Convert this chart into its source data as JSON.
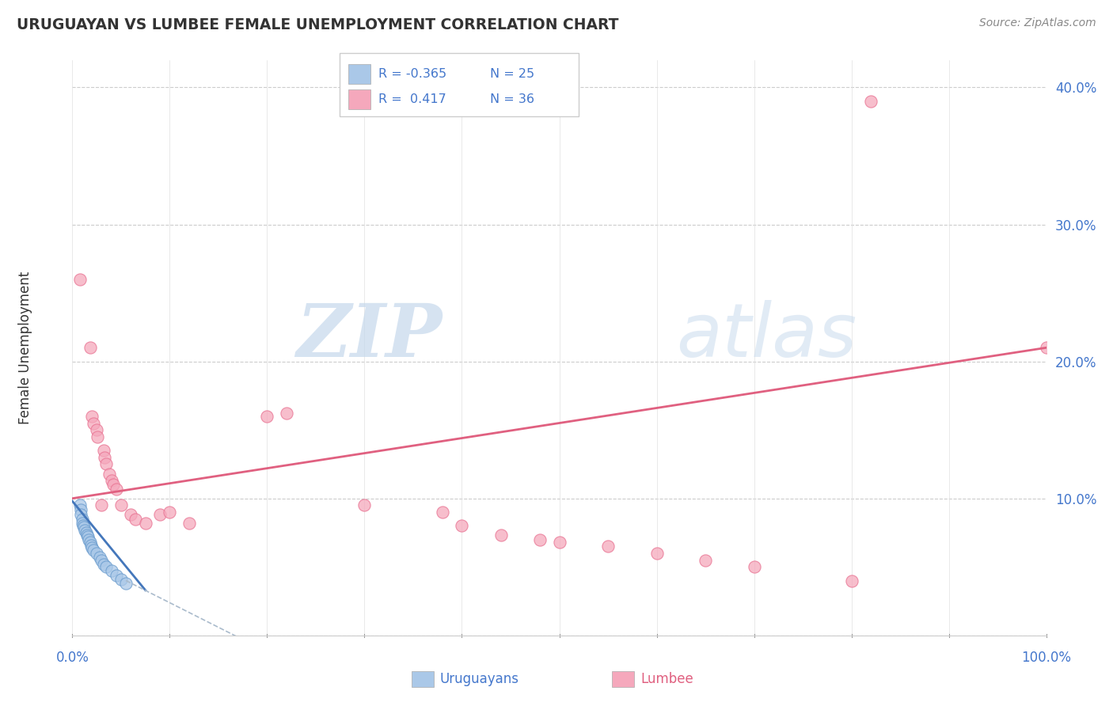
{
  "title": "URUGUAYAN VS LUMBEE FEMALE UNEMPLOYMENT CORRELATION CHART",
  "source": "Source: ZipAtlas.com",
  "ylabel": "Female Unemployment",
  "xlim": [
    0,
    1.0
  ],
  "ylim": [
    0,
    0.42
  ],
  "yticks": [
    0.0,
    0.1,
    0.2,
    0.3,
    0.4
  ],
  "ytick_labels_right": [
    "",
    "10.0%",
    "20.0%",
    "30.0%",
    "40.0%"
  ],
  "uruguayan_color": "#aac8e8",
  "lumbee_color": "#f5a8bc",
  "uruguayan_edge_color": "#6699cc",
  "lumbee_edge_color": "#e87090",
  "uruguayan_line_color": "#4477bb",
  "lumbee_line_color": "#e06080",
  "uruguayan_trend_dashed_color": "#aabbcc",
  "legend_uruguayan_r": "R = -0.365",
  "legend_uruguayan_n": "N = 25",
  "legend_lumbee_r": "R =  0.417",
  "legend_lumbee_n": "N = 36",
  "watermark_zip": "ZIP",
  "watermark_atlas": "atlas",
  "uruguayan_points": [
    [
      0.008,
      0.095
    ],
    [
      0.009,
      0.092
    ],
    [
      0.009,
      0.088
    ],
    [
      0.01,
      0.085
    ],
    [
      0.01,
      0.082
    ],
    [
      0.011,
      0.08
    ],
    [
      0.012,
      0.079
    ],
    [
      0.013,
      0.077
    ],
    [
      0.014,
      0.075
    ],
    [
      0.015,
      0.073
    ],
    [
      0.016,
      0.072
    ],
    [
      0.017,
      0.07
    ],
    [
      0.018,
      0.068
    ],
    [
      0.019,
      0.066
    ],
    [
      0.02,
      0.064
    ],
    [
      0.022,
      0.062
    ],
    [
      0.025,
      0.06
    ],
    [
      0.028,
      0.057
    ],
    [
      0.03,
      0.055
    ],
    [
      0.032,
      0.052
    ],
    [
      0.035,
      0.05
    ],
    [
      0.04,
      0.047
    ],
    [
      0.045,
      0.044
    ],
    [
      0.05,
      0.041
    ],
    [
      0.055,
      0.038
    ]
  ],
  "lumbee_points": [
    [
      0.008,
      0.26
    ],
    [
      0.018,
      0.21
    ],
    [
      0.02,
      0.16
    ],
    [
      0.022,
      0.155
    ],
    [
      0.025,
      0.15
    ],
    [
      0.026,
      0.145
    ],
    [
      0.03,
      0.095
    ],
    [
      0.032,
      0.135
    ],
    [
      0.033,
      0.13
    ],
    [
      0.035,
      0.125
    ],
    [
      0.038,
      0.118
    ],
    [
      0.04,
      0.113
    ],
    [
      0.042,
      0.11
    ],
    [
      0.045,
      0.107
    ],
    [
      0.05,
      0.095
    ],
    [
      0.06,
      0.088
    ],
    [
      0.065,
      0.085
    ],
    [
      0.075,
      0.082
    ],
    [
      0.09,
      0.088
    ],
    [
      0.1,
      0.09
    ],
    [
      0.12,
      0.082
    ],
    [
      0.2,
      0.16
    ],
    [
      0.22,
      0.162
    ],
    [
      0.3,
      0.095
    ],
    [
      0.38,
      0.09
    ],
    [
      0.4,
      0.08
    ],
    [
      0.44,
      0.073
    ],
    [
      0.48,
      0.07
    ],
    [
      0.5,
      0.068
    ],
    [
      0.55,
      0.065
    ],
    [
      0.6,
      0.06
    ],
    [
      0.65,
      0.055
    ],
    [
      0.7,
      0.05
    ],
    [
      0.8,
      0.04
    ],
    [
      0.82,
      0.39
    ],
    [
      1.0,
      0.21
    ]
  ],
  "uruguayan_trend": {
    "x_start": 0.0,
    "y_start": 0.098,
    "x_end": 0.075,
    "y_end": 0.033
  },
  "uruguayan_trend_ext": {
    "x_start": 0.055,
    "y_start": 0.04,
    "x_end": 0.2,
    "y_end": -0.012
  },
  "lumbee_trend": {
    "x_start": 0.0,
    "y_start": 0.1,
    "x_end": 1.0,
    "y_end": 0.21
  }
}
